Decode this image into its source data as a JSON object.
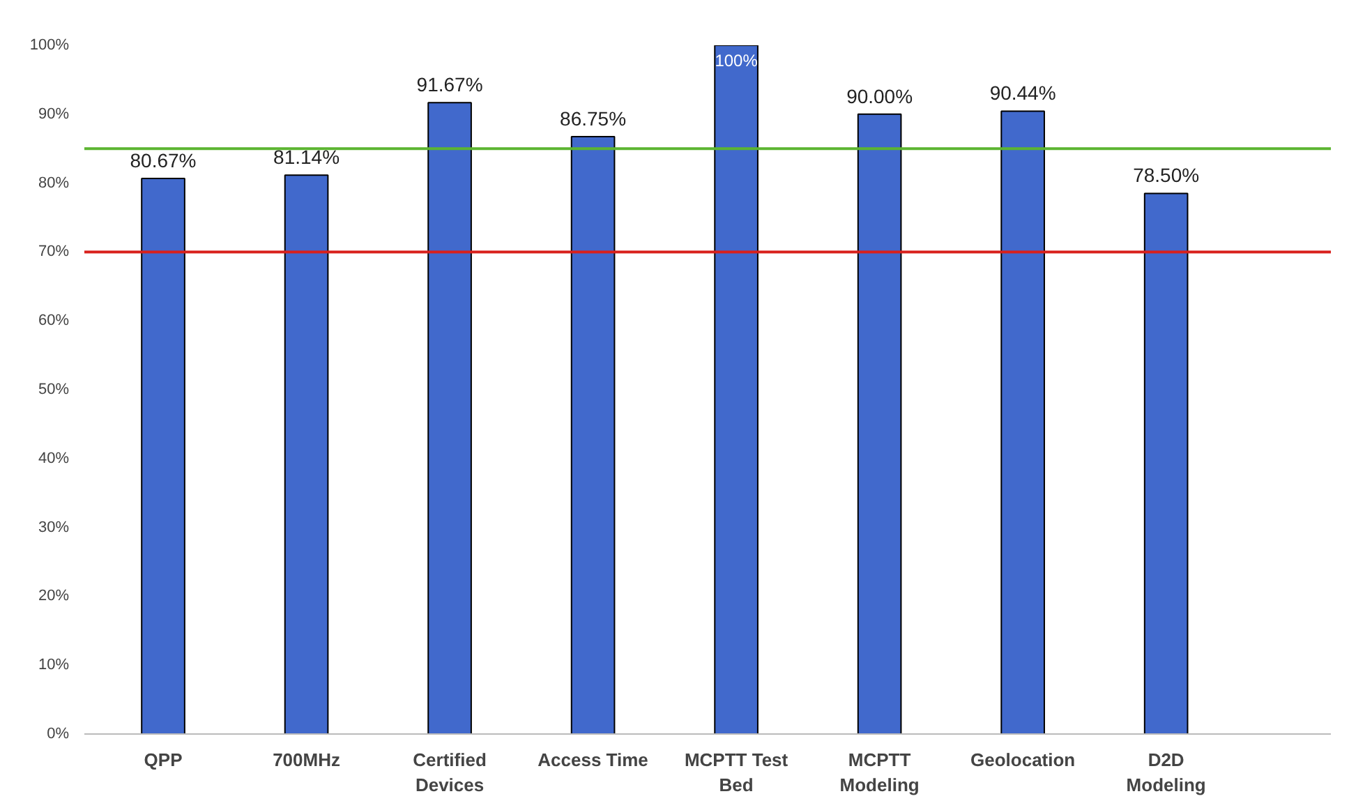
{
  "chart_data": {
    "type": "bar",
    "categories": [
      "QPP",
      "700MHz",
      "Certified Devices",
      "Access Time",
      "MCPTT Test Bed",
      "MCPTT Modeling",
      "Geolocation",
      "D2D Modeling"
    ],
    "values": [
      80.67,
      81.14,
      91.67,
      86.75,
      100,
      90.0,
      90.44,
      78.5
    ],
    "value_labels": [
      "80.67%",
      "81.14%",
      "91.67%",
      "86.75%",
      "100%",
      "90.00%",
      "90.44%",
      "78.50%"
    ],
    "color": "#4169cc",
    "ylim": [
      0,
      100
    ],
    "yticks": [
      {
        "value": 0,
        "label": "0%"
      },
      {
        "value": 10,
        "label": "10%"
      },
      {
        "value": 20,
        "label": "20%"
      },
      {
        "value": 30,
        "label": "30%"
      },
      {
        "value": 40,
        "label": "40%"
      },
      {
        "value": 50,
        "label": "50%"
      },
      {
        "value": 60,
        "label": "60%"
      },
      {
        "value": 70,
        "label": "70%"
      },
      {
        "value": 80,
        "label": "80%"
      },
      {
        "value": 90,
        "label": "90%"
      },
      {
        "value": 100,
        "label": "100%"
      }
    ],
    "ref_lines": [
      {
        "axis": "y",
        "value": 85,
        "color": "#5cb531"
      },
      {
        "axis": "y",
        "value": 70,
        "color": "#d8201c"
      }
    ],
    "grid": false
  }
}
